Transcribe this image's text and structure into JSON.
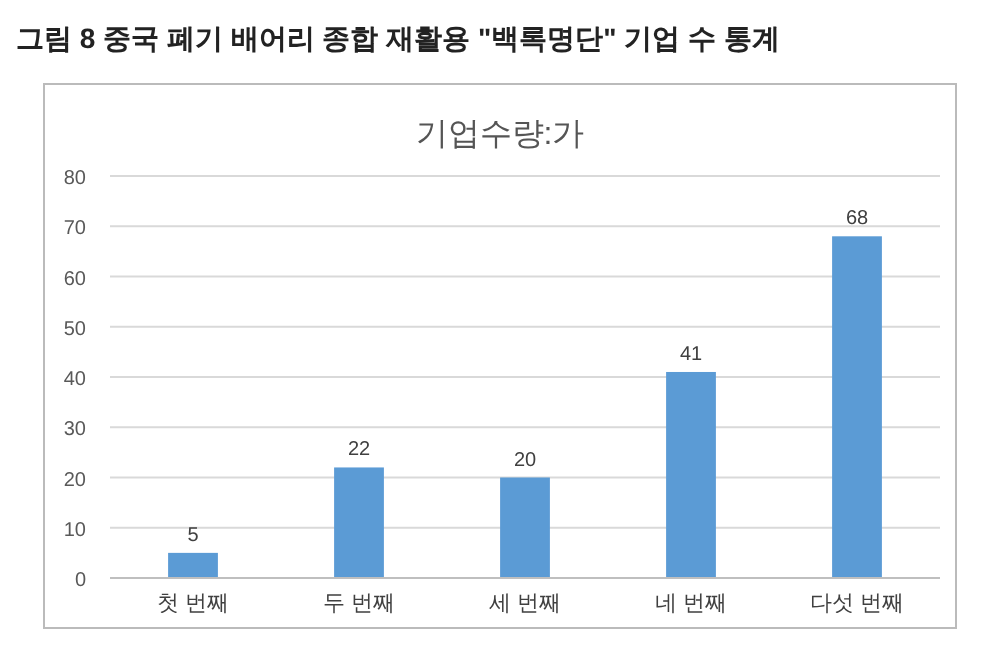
{
  "chart_data": {
    "type": "bar",
    "title": "그림 8 중국 폐기 배어리 종합 재활용 \"백록명단\" 기업 수 통계",
    "subtitle": "기업수량:가",
    "categories": [
      "첫 번째",
      "두 번째",
      "세 번째",
      "네 번째",
      "다섯 번째"
    ],
    "values": [
      5,
      22,
      20,
      41,
      68
    ],
    "color": "#5b9bd5",
    "ylim": [
      0,
      80
    ],
    "yticks": [
      0,
      10,
      20,
      30,
      40,
      50,
      60,
      70,
      80
    ],
    "grid": "y",
    "data_labels": true
  }
}
